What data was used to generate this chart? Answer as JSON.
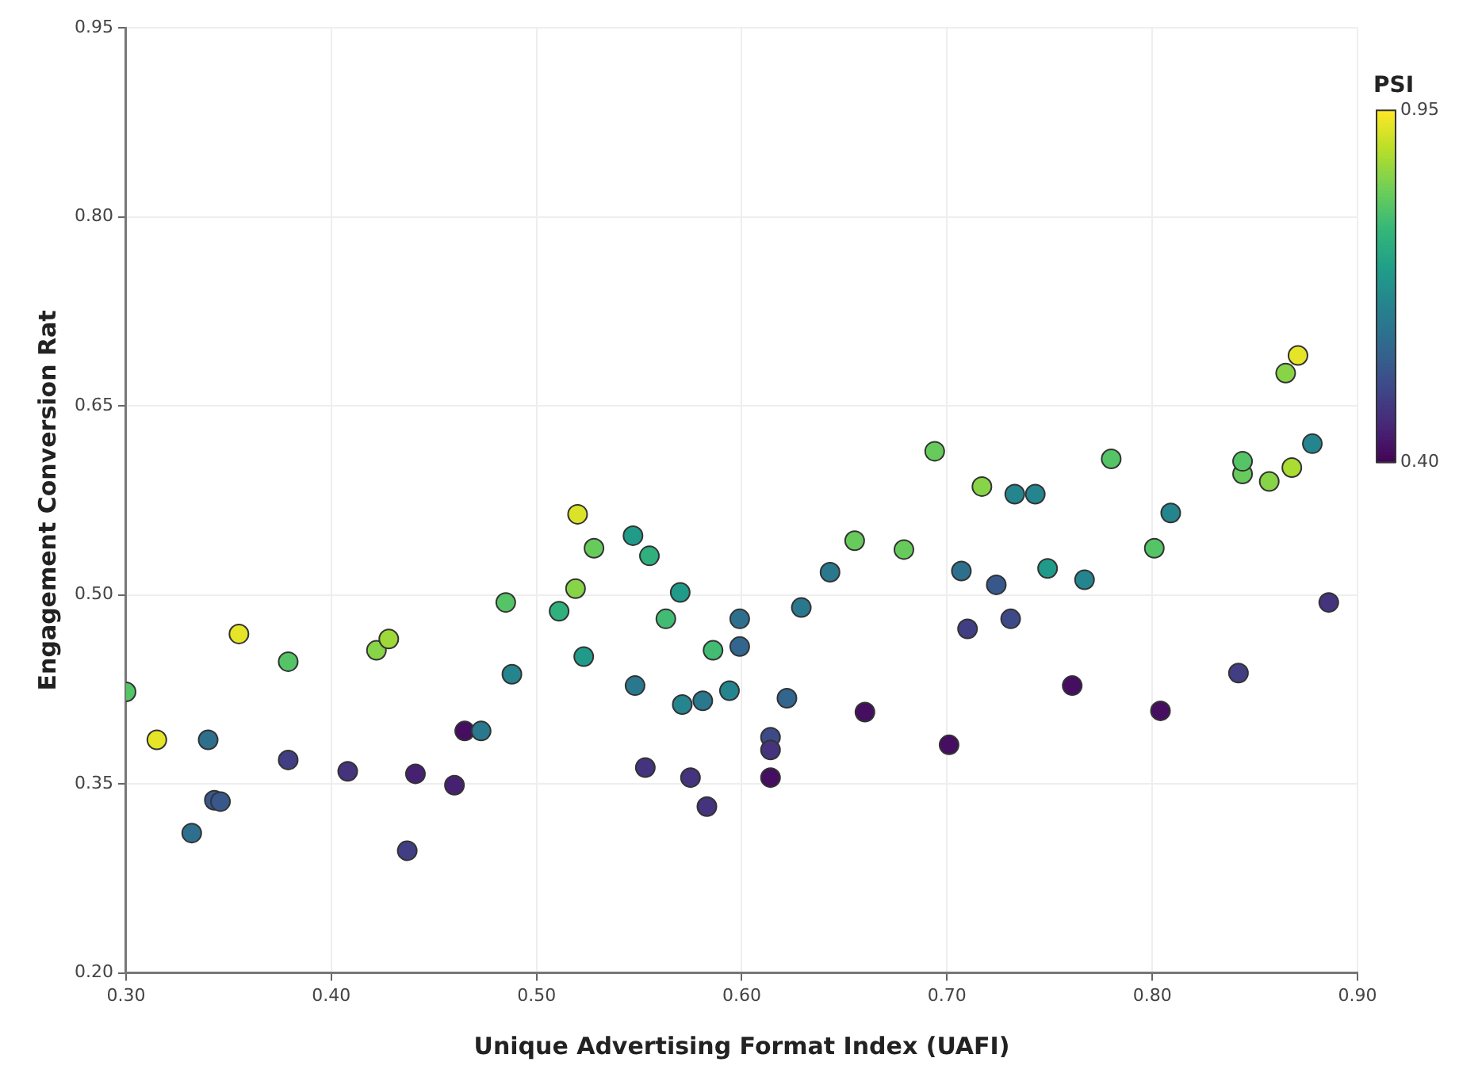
{
  "chart_data": {
    "type": "scatter",
    "xlabel": "Unique Advertising Format Index (UAFI)",
    "ylabel": "Engagement Conversion Rat",
    "clabel": "PSI",
    "xlim": [
      0.3,
      0.9
    ],
    "xticks": [
      {
        "value": 0.3,
        "label": "0.30"
      },
      {
        "value": 0.4,
        "label": "0.40"
      },
      {
        "value": 0.5,
        "label": "0.50"
      },
      {
        "value": 0.6,
        "label": "0.60"
      },
      {
        "value": 0.7,
        "label": "0.70"
      },
      {
        "value": 0.8,
        "label": "0.80"
      },
      {
        "value": 0.9,
        "label": "0.90"
      }
    ],
    "ylim": [
      0.2,
      0.95
    ],
    "yticks": [
      {
        "value": 0.2,
        "label": "0.20"
      },
      {
        "value": 0.35,
        "label": "0.35"
      },
      {
        "value": 0.5,
        "label": "0.50"
      },
      {
        "value": 0.65,
        "label": "0.65"
      },
      {
        "value": 0.8,
        "label": "0.80"
      },
      {
        "value": 0.95,
        "label": "0.95"
      }
    ],
    "clim": [
      0.4,
      0.95
    ],
    "cticks": [
      {
        "value": 0.4,
        "label": "0.40"
      },
      {
        "value": 0.95,
        "label": "0.95"
      }
    ],
    "grid": true,
    "marker": "circle",
    "legend": false,
    "x": [
      0.3,
      0.315,
      0.355,
      0.379,
      0.422,
      0.428,
      0.332,
      0.34,
      0.343,
      0.346,
      0.379,
      0.408,
      0.441,
      0.437,
      0.46,
      0.465,
      0.473,
      0.485,
      0.488,
      0.511,
      0.519,
      0.52,
      0.523,
      0.528,
      0.547,
      0.555,
      0.548,
      0.553,
      0.563,
      0.57,
      0.571,
      0.575,
      0.581,
      0.583,
      0.586,
      0.594,
      0.599,
      0.599,
      0.614,
      0.614,
      0.614,
      0.622,
      0.629,
      0.643,
      0.655,
      0.66,
      0.679,
      0.694,
      0.701,
      0.707,
      0.71,
      0.717,
      0.724,
      0.731,
      0.733,
      0.743,
      0.749,
      0.761,
      0.767,
      0.78,
      0.801,
      0.804,
      0.809,
      0.842,
      0.844,
      0.844,
      0.857,
      0.865,
      0.868,
      0.871,
      0.878,
      0.886
    ],
    "values": [
      0.423,
      0.385,
      0.469,
      0.447,
      0.456,
      0.465,
      0.311,
      0.385,
      0.337,
      0.336,
      0.369,
      0.36,
      0.358,
      0.297,
      0.349,
      0.392,
      0.392,
      0.494,
      0.437,
      0.487,
      0.505,
      0.564,
      0.451,
      0.537,
      0.547,
      0.531,
      0.428,
      0.363,
      0.481,
      0.502,
      0.413,
      0.355,
      0.416,
      0.332,
      0.456,
      0.424,
      0.459,
      0.481,
      0.387,
      0.377,
      0.355,
      0.418,
      0.49,
      0.518,
      0.543,
      0.407,
      0.536,
      0.614,
      0.381,
      0.519,
      0.473,
      0.586,
      0.508,
      0.481,
      0.58,
      0.58,
      0.521,
      0.428,
      0.512,
      0.608,
      0.537,
      0.408,
      0.565,
      0.438,
      0.596,
      0.606,
      0.59,
      0.676,
      0.601,
      0.69,
      0.62,
      0.494
    ],
    "cvalues": [
      0.8,
      0.93,
      0.93,
      0.8,
      0.85,
      0.87,
      0.6,
      0.6,
      0.55,
      0.55,
      0.5,
      0.48,
      0.45,
      0.5,
      0.45,
      0.42,
      0.62,
      0.8,
      0.65,
      0.75,
      0.85,
      0.92,
      0.7,
      0.82,
      0.7,
      0.75,
      0.62,
      0.48,
      0.78,
      0.7,
      0.65,
      0.48,
      0.62,
      0.48,
      0.78,
      0.65,
      0.58,
      0.6,
      0.52,
      0.48,
      0.42,
      0.58,
      0.62,
      0.62,
      0.82,
      0.42,
      0.82,
      0.82,
      0.42,
      0.6,
      0.5,
      0.85,
      0.55,
      0.52,
      0.65,
      0.65,
      0.7,
      0.42,
      0.65,
      0.8,
      0.8,
      0.42,
      0.65,
      0.5,
      0.82,
      0.8,
      0.85,
      0.85,
      0.88,
      0.93,
      0.65,
      0.48
    ]
  }
}
